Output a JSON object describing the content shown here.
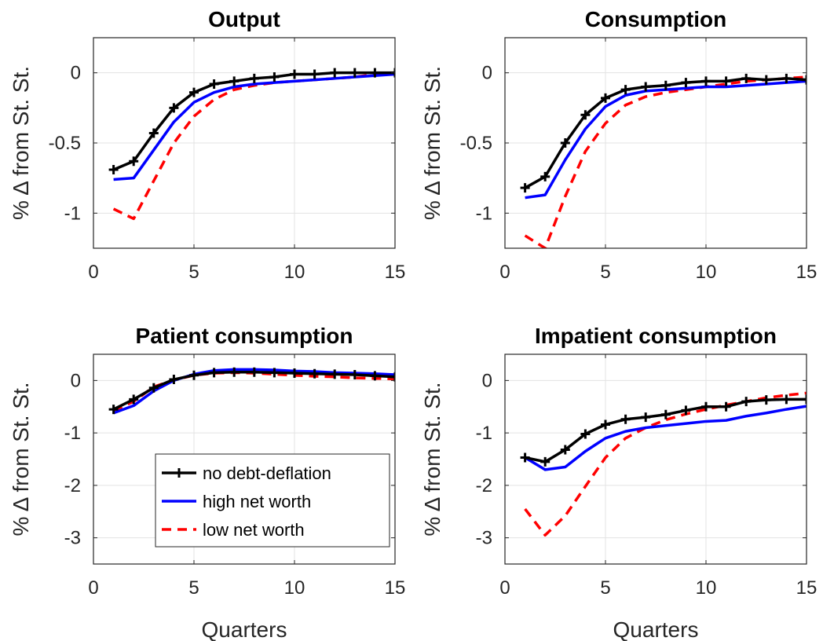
{
  "figure": {
    "legend": {
      "placement": "inside-lower-panel-3",
      "entries": [
        {
          "series": "no debt-deflation",
          "label": "no debt-deflation"
        },
        {
          "series": "high net worth",
          "label": "high net worth"
        },
        {
          "series": "low net worth",
          "label": "low net worth"
        }
      ]
    },
    "series_styles": [
      {
        "name": "no debt-deflation",
        "color": "#000000",
        "dash": "solid",
        "marker": "plus"
      },
      {
        "name": "high net worth",
        "color": "#0000ff",
        "dash": "solid",
        "marker": "none"
      },
      {
        "name": "low net worth",
        "color": "#ff0000",
        "dash": "dashed",
        "marker": "none"
      }
    ],
    "grid": true
  },
  "chart_data": [
    {
      "type": "line",
      "title": "Output",
      "xlabel": "",
      "ylabel": "% Δ from St. St.",
      "xlim": [
        0,
        15
      ],
      "ylim": [
        -1.25,
        0.25
      ],
      "xticks": [
        0,
        5,
        10,
        15
      ],
      "yticks": [
        -1,
        -0.5,
        0
      ],
      "ytick_labels": [
        "-1",
        "-0.5",
        "0"
      ],
      "x": [
        1,
        2,
        3,
        4,
        5,
        6,
        7,
        8,
        9,
        10,
        11,
        12,
        13,
        14,
        15
      ],
      "series": [
        {
          "name": "no debt-deflation",
          "values": [
            -0.69,
            -0.63,
            -0.43,
            -0.25,
            -0.14,
            -0.08,
            -0.06,
            -0.04,
            -0.03,
            -0.01,
            -0.01,
            0.0,
            0.0,
            0.0,
            0.0
          ]
        },
        {
          "name": "high net worth",
          "values": [
            -0.76,
            -0.75,
            -0.55,
            -0.35,
            -0.21,
            -0.14,
            -0.1,
            -0.08,
            -0.07,
            -0.06,
            -0.05,
            -0.04,
            -0.03,
            -0.02,
            -0.01
          ]
        },
        {
          "name": "low net worth",
          "values": [
            -0.97,
            -1.04,
            -0.77,
            -0.5,
            -0.31,
            -0.19,
            -0.12,
            -0.09,
            -0.07,
            -0.06,
            -0.05,
            -0.04,
            -0.03,
            -0.01,
            0.0
          ]
        }
      ]
    },
    {
      "type": "line",
      "title": "Consumption",
      "xlabel": "",
      "ylabel": "% Δ from St. St.",
      "xlim": [
        0,
        15
      ],
      "ylim": [
        -1.25,
        0.25
      ],
      "xticks": [
        0,
        5,
        10,
        15
      ],
      "yticks": [
        -1,
        -0.5,
        0
      ],
      "ytick_labels": [
        "-1",
        "-0.5",
        "0"
      ],
      "x": [
        1,
        2,
        3,
        4,
        5,
        6,
        7,
        8,
        9,
        10,
        11,
        12,
        13,
        14,
        15
      ],
      "series": [
        {
          "name": "no debt-deflation",
          "values": [
            -0.82,
            -0.74,
            -0.5,
            -0.3,
            -0.18,
            -0.12,
            -0.1,
            -0.09,
            -0.07,
            -0.06,
            -0.06,
            -0.04,
            -0.05,
            -0.04,
            -0.05
          ]
        },
        {
          "name": "high net worth",
          "values": [
            -0.89,
            -0.87,
            -0.62,
            -0.4,
            -0.24,
            -0.16,
            -0.13,
            -0.12,
            -0.11,
            -0.1,
            -0.1,
            -0.09,
            -0.08,
            -0.07,
            -0.06
          ]
        },
        {
          "name": "low net worth",
          "values": [
            -1.16,
            -1.25,
            -0.88,
            -0.56,
            -0.36,
            -0.23,
            -0.17,
            -0.14,
            -0.12,
            -0.1,
            -0.08,
            -0.06,
            -0.05,
            -0.04,
            -0.03
          ]
        }
      ]
    },
    {
      "type": "line",
      "title": "Patient consumption",
      "xlabel": "Quarters",
      "ylabel": "% Δ from St. St.",
      "xlim": [
        0,
        15
      ],
      "ylim": [
        -3.5,
        0.5
      ],
      "xticks": [
        0,
        5,
        10,
        15
      ],
      "yticks": [
        -3,
        -2,
        -1,
        0
      ],
      "ytick_labels": [
        "-3",
        "-2",
        "-1",
        "0"
      ],
      "x": [
        1,
        2,
        3,
        4,
        5,
        6,
        7,
        8,
        9,
        10,
        11,
        12,
        13,
        14,
        15
      ],
      "series": [
        {
          "name": "no debt-deflation",
          "values": [
            -0.55,
            -0.36,
            -0.14,
            0.02,
            0.1,
            0.15,
            0.16,
            0.16,
            0.15,
            0.14,
            0.13,
            0.12,
            0.11,
            0.09,
            0.07
          ]
        },
        {
          "name": "high net worth",
          "values": [
            -0.62,
            -0.48,
            -0.2,
            0.0,
            0.12,
            0.19,
            0.21,
            0.21,
            0.2,
            0.18,
            0.17,
            0.15,
            0.14,
            0.13,
            0.11
          ]
        },
        {
          "name": "low net worth",
          "values": [
            -0.58,
            -0.4,
            -0.12,
            0.01,
            0.1,
            0.14,
            0.15,
            0.14,
            0.12,
            0.1,
            0.08,
            0.07,
            0.05,
            0.04,
            0.03
          ]
        }
      ]
    },
    {
      "type": "line",
      "title": "Impatient consumption",
      "xlabel": "Quarters",
      "ylabel": "% Δ from St. St.",
      "xlim": [
        0,
        15
      ],
      "ylim": [
        -3.5,
        0.5
      ],
      "xticks": [
        0,
        5,
        10,
        15
      ],
      "yticks": [
        -3,
        -2,
        -1,
        0
      ],
      "ytick_labels": [
        "-3",
        "-2",
        "-1",
        "0"
      ],
      "x": [
        1,
        2,
        3,
        4,
        5,
        6,
        7,
        8,
        9,
        10,
        11,
        12,
        13,
        14,
        15
      ],
      "series": [
        {
          "name": "no debt-deflation",
          "values": [
            -1.47,
            -1.55,
            -1.32,
            -1.02,
            -0.84,
            -0.74,
            -0.7,
            -0.65,
            -0.57,
            -0.5,
            -0.5,
            -0.4,
            -0.37,
            -0.36,
            -0.36
          ]
        },
        {
          "name": "high net worth",
          "values": [
            -1.47,
            -1.7,
            -1.65,
            -1.35,
            -1.1,
            -0.97,
            -0.9,
            -0.86,
            -0.82,
            -0.78,
            -0.76,
            -0.68,
            -0.62,
            -0.55,
            -0.49
          ]
        },
        {
          "name": "low net worth",
          "values": [
            -2.45,
            -2.95,
            -2.58,
            -2.02,
            -1.47,
            -1.1,
            -0.9,
            -0.75,
            -0.64,
            -0.55,
            -0.47,
            -0.4,
            -0.33,
            -0.28,
            -0.24
          ]
        }
      ]
    }
  ]
}
